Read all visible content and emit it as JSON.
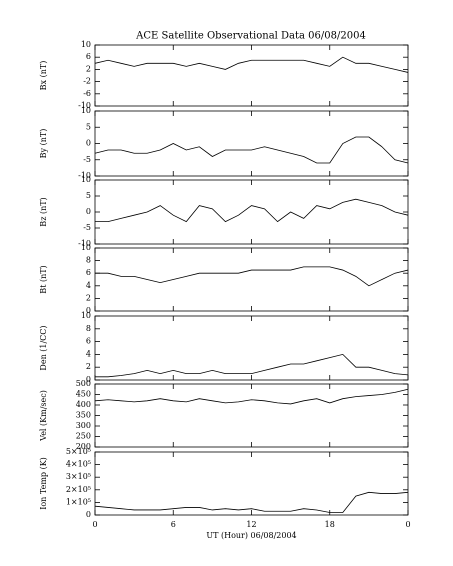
{
  "chart_data": [
    {
      "type": "line",
      "title": "ACE Satellite Observational Data   06/08/2004",
      "ylabel": "Bx (nT)",
      "color": "#000000",
      "x": [
        0,
        1,
        2,
        3,
        4,
        5,
        6,
        7,
        8,
        9,
        10,
        11,
        12,
        13,
        14,
        15,
        16,
        17,
        18,
        19,
        20,
        21,
        22,
        23,
        24
      ],
      "values": [
        4,
        5,
        4,
        3,
        4,
        4,
        4,
        3,
        4,
        3,
        2,
        4,
        5,
        5,
        5,
        5,
        5,
        4,
        3,
        6,
        4,
        4,
        3,
        2,
        1
      ],
      "ylim": [
        -10,
        10
      ],
      "yticks": [
        -10,
        -6,
        -2,
        2,
        6,
        10
      ]
    },
    {
      "type": "line",
      "ylabel": "By (nT)",
      "color": "#000000",
      "x": [
        0,
        1,
        2,
        3,
        4,
        5,
        6,
        7,
        8,
        9,
        10,
        11,
        12,
        13,
        14,
        15,
        16,
        17,
        18,
        19,
        20,
        21,
        22,
        23,
        24
      ],
      "values": [
        -3,
        -2,
        -2,
        -3,
        -3,
        -2,
        0,
        -2,
        -1,
        -4,
        -2,
        -2,
        -2,
        -1,
        -2,
        -3,
        -4,
        -6,
        -6,
        0,
        2,
        2,
        -1,
        -5,
        -6
      ],
      "ylim": [
        -10,
        10
      ],
      "yticks": [
        -10,
        -5,
        0,
        5,
        10
      ]
    },
    {
      "type": "line",
      "ylabel": "Bz (nT)",
      "color": "#000000",
      "x": [
        0,
        1,
        2,
        3,
        4,
        5,
        6,
        7,
        8,
        9,
        10,
        11,
        12,
        13,
        14,
        15,
        16,
        17,
        18,
        19,
        20,
        21,
        22,
        23,
        24
      ],
      "values": [
        -3,
        -3,
        -2,
        -1,
        0,
        2,
        -1,
        -3,
        2,
        1,
        -3,
        -1,
        2,
        1,
        -3,
        0,
        -2,
        2,
        1,
        3,
        4,
        3,
        2,
        0,
        -1
      ],
      "ylim": [
        -10,
        10
      ],
      "yticks": [
        -10,
        -5,
        0,
        5,
        10
      ]
    },
    {
      "type": "line",
      "ylabel": "Bt (nT)",
      "color": "#000000",
      "x": [
        0,
        1,
        2,
        3,
        4,
        5,
        6,
        7,
        8,
        9,
        10,
        11,
        12,
        13,
        14,
        15,
        16,
        17,
        18,
        19,
        20,
        21,
        22,
        23,
        24
      ],
      "values": [
        6,
        6,
        5.5,
        5.5,
        5,
        4.5,
        5,
        5.5,
        6,
        6,
        6,
        6,
        6.5,
        6.5,
        6.5,
        6.5,
        7,
        7,
        7,
        6.5,
        5.5,
        4,
        5,
        6,
        6.5
      ],
      "ylim": [
        0,
        10
      ],
      "yticks": [
        0,
        2,
        4,
        6,
        8,
        10
      ]
    },
    {
      "type": "line",
      "ylabel": "Den (1/CC)",
      "color": "#000000",
      "x": [
        0,
        1,
        2,
        3,
        4,
        5,
        6,
        7,
        8,
        9,
        10,
        11,
        12,
        13,
        14,
        15,
        16,
        17,
        18,
        19,
        20,
        21,
        22,
        23,
        24
      ],
      "values": [
        0.5,
        0.5,
        0.7,
        1,
        1.5,
        1,
        1.5,
        1,
        1,
        1.5,
        1,
        1,
        1,
        1.5,
        2,
        2.5,
        2.5,
        3,
        3.5,
        4,
        2,
        2,
        1.5,
        1,
        0.8
      ],
      "ylim": [
        0,
        10
      ],
      "yticks": [
        0,
        2,
        4,
        6,
        8,
        10
      ]
    },
    {
      "type": "line",
      "ylabel": "Vel (Km/sec)",
      "color": "#000000",
      "x": [
        0,
        1,
        2,
        3,
        4,
        5,
        6,
        7,
        8,
        9,
        10,
        11,
        12,
        13,
        14,
        15,
        16,
        17,
        18,
        19,
        20,
        21,
        22,
        23,
        24
      ],
      "values": [
        420,
        425,
        420,
        415,
        420,
        430,
        420,
        415,
        430,
        420,
        410,
        415,
        425,
        420,
        410,
        405,
        420,
        430,
        410,
        430,
        440,
        445,
        450,
        460,
        475
      ],
      "ylim": [
        200,
        500
      ],
      "yticks": [
        200,
        250,
        300,
        350,
        400,
        450,
        500
      ]
    },
    {
      "type": "line",
      "ylabel": "Ion Temp (K)",
      "color": "#000000",
      "x": [
        0,
        1,
        2,
        3,
        4,
        5,
        6,
        7,
        8,
        9,
        10,
        11,
        12,
        13,
        14,
        15,
        16,
        17,
        18,
        19,
        20,
        21,
        22,
        23,
        24
      ],
      "values": [
        70000,
        60000,
        50000,
        40000,
        40000,
        40000,
        50000,
        60000,
        60000,
        40000,
        50000,
        40000,
        50000,
        30000,
        30000,
        30000,
        50000,
        40000,
        20000,
        20000,
        150000,
        180000,
        170000,
        170000,
        180000
      ],
      "ylim": [
        0,
        500000
      ],
      "yticks": [
        0,
        {
          "value": 100000,
          "label": "1×10⁵"
        },
        {
          "value": 200000,
          "label": "2×10⁵"
        },
        {
          "value": 300000,
          "label": "3×10⁵"
        },
        {
          "value": 400000,
          "label": "4×10⁵"
        },
        {
          "value": 500000,
          "label": "5×10⁵"
        }
      ],
      "xlabel": "UT (Hour)   06/08/2004",
      "xlim": [
        0,
        24
      ],
      "xticks": [
        0,
        6,
        12,
        18,
        {
          "value": 24,
          "label": "0"
        }
      ]
    }
  ]
}
